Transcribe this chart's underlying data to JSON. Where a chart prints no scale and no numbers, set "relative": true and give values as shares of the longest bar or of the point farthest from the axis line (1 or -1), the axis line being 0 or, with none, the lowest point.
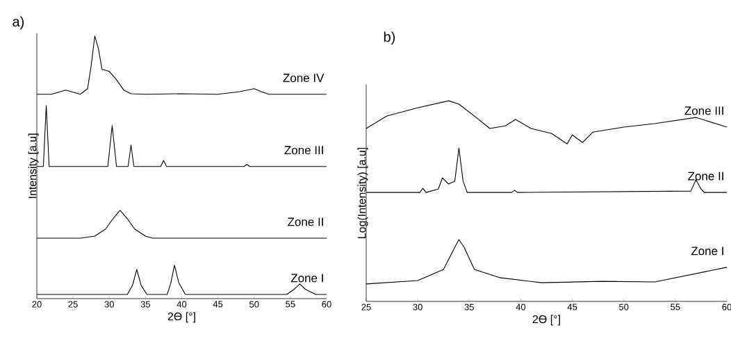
{
  "chart_data": [
    {
      "type": "line",
      "title": "a)",
      "xlabel": "2ϴ [°]",
      "ylabel": "Intensity [a.u]",
      "relative": true,
      "xlim": [
        20,
        60
      ],
      "xticks": [
        20,
        25,
        30,
        35,
        40,
        45,
        50,
        55,
        60
      ],
      "marker": "none",
      "line_style": "solid",
      "series": [
        {
          "name": "Zone IV",
          "color": "#000000",
          "x": [
            20,
            22,
            24,
            26,
            27,
            27.5,
            28,
            28.5,
            29,
            30,
            31,
            32,
            33,
            35,
            40,
            45,
            48,
            50,
            51,
            52,
            60
          ],
          "values": [
            0.778,
            0.778,
            0.794,
            0.778,
            0.799,
            0.886,
            1.0,
            0.952,
            0.873,
            0.865,
            0.833,
            0.794,
            0.78,
            0.778,
            0.78,
            0.778,
            0.788,
            0.799,
            0.788,
            0.778,
            0.778
          ]
        },
        {
          "name": "Zone III",
          "color": "#000000",
          "x": [
            20,
            20.9,
            21.3,
            21.7,
            22.5,
            29.8,
            30.4,
            31.0,
            32.6,
            33.0,
            33.4,
            37.1,
            37.5,
            37.9,
            48.6,
            49.0,
            49.4,
            60
          ],
          "values": [
            0.503,
            0.503,
            0.735,
            0.503,
            0.503,
            0.503,
            0.659,
            0.503,
            0.503,
            0.585,
            0.503,
            0.503,
            0.526,
            0.503,
            0.503,
            0.511,
            0.503,
            0.503
          ]
        },
        {
          "name": "Zone II",
          "color": "#000000",
          "x": [
            20,
            26,
            28,
            29.5,
            30.5,
            31.5,
            32.5,
            33.5,
            35,
            36,
            60
          ],
          "values": [
            0.23,
            0.23,
            0.238,
            0.265,
            0.304,
            0.336,
            0.304,
            0.265,
            0.238,
            0.23,
            0.23
          ]
        },
        {
          "name": "Zone I",
          "color": "#000000",
          "x": [
            20,
            32.5,
            33.2,
            33.8,
            34.4,
            35.2,
            38.0,
            38.5,
            39.0,
            39.6,
            40.5,
            54.5,
            55.5,
            56.3,
            57.1,
            58.5,
            60
          ],
          "values": [
            0.016,
            0.016,
            0.05,
            0.111,
            0.05,
            0.016,
            0.016,
            0.06,
            0.127,
            0.06,
            0.016,
            0.016,
            0.035,
            0.056,
            0.035,
            0.016,
            0.016
          ]
        }
      ]
    },
    {
      "type": "line",
      "title": "b)",
      "xlabel": "2ϴ [°]",
      "ylabel": "Log(Intensity) [a.u]",
      "relative": true,
      "xlim": [
        25,
        60
      ],
      "xticks": [
        25,
        30,
        35,
        40,
        45,
        50,
        55,
        60
      ],
      "marker": "none",
      "line_style": "solid",
      "series": [
        {
          "name": "Zone III",
          "color": "#000000",
          "x": [
            25,
            27,
            30,
            33,
            34,
            35.5,
            37,
            38.5,
            39.5,
            41,
            43,
            44.5,
            45,
            46,
            47,
            50,
            53,
            57,
            60
          ],
          "values": [
            0.862,
            0.924,
            0.965,
            1.0,
            0.983,
            0.924,
            0.862,
            0.875,
            0.907,
            0.862,
            0.837,
            0.785,
            0.83,
            0.792,
            0.844,
            0.869,
            0.886,
            0.917,
            0.869
          ]
        },
        {
          "name": "Zone II",
          "color": "#000000",
          "x": [
            25,
            30.2,
            30.5,
            30.8,
            32.0,
            32.4,
            33.0,
            33.6,
            34.0,
            34.4,
            34.8,
            39.1,
            39.4,
            39.7,
            56.5,
            57.0,
            57.5,
            57.8,
            60
          ],
          "values": [
            0.543,
            0.543,
            0.564,
            0.543,
            0.56,
            0.616,
            0.585,
            0.6,
            0.765,
            0.6,
            0.543,
            0.543,
            0.554,
            0.543,
            0.55,
            0.606,
            0.56,
            0.543,
            0.543
          ]
        },
        {
          "name": "Zone I",
          "color": "#000000",
          "x": [
            25,
            30,
            32.5,
            33.6,
            34,
            34.5,
            35.5,
            38,
            42,
            48,
            53,
            60
          ],
          "values": [
            0.087,
            0.104,
            0.159,
            0.27,
            0.308,
            0.27,
            0.159,
            0.118,
            0.093,
            0.1,
            0.097,
            0.17
          ]
        }
      ]
    }
  ]
}
